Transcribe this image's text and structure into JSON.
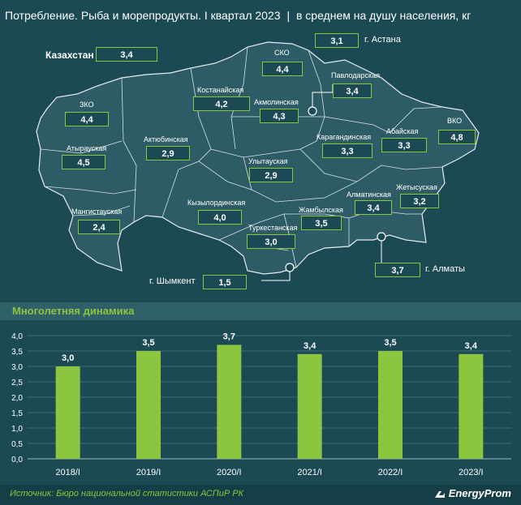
{
  "header": {
    "title": "Потребление. Рыба и морепродукты. I квартал 2023",
    "separator": "|",
    "subtitle": "в среднем на душу населения, кг"
  },
  "map": {
    "kazakhstan_label": "Казахстан",
    "kazakhstan_value": "3,4",
    "regions": [
      {
        "name": "СКО",
        "value": "4,4"
      },
      {
        "name": "Павлодарская",
        "value": "3,4"
      },
      {
        "name": "Костанайская",
        "value": "4,2"
      },
      {
        "name": "Акмолинская",
        "value": "4,3"
      },
      {
        "name": "ЗКО",
        "value": "4,4"
      },
      {
        "name": "Атырауская",
        "value": "4,5"
      },
      {
        "name": "Актюбинская",
        "value": "2,9"
      },
      {
        "name": "Улытауская",
        "value": "2,9"
      },
      {
        "name": "Карагандинская",
        "value": "3,3"
      },
      {
        "name": "Абайская",
        "value": "3,3"
      },
      {
        "name": "ВКО",
        "value": "4,8"
      },
      {
        "name": "Мангистауская",
        "value": "2,4"
      },
      {
        "name": "Кызылординская",
        "value": "4,0"
      },
      {
        "name": "Жамбылская",
        "value": "3,5"
      },
      {
        "name": "Алматинская",
        "value": "3,4"
      },
      {
        "name": "Жетысуская",
        "value": "3,2"
      },
      {
        "name": "Туркестанская",
        "value": "3,0"
      }
    ],
    "cities": [
      {
        "name": "г. Астана",
        "value": "3,1"
      },
      {
        "name": "г. Алматы",
        "value": "3,7"
      },
      {
        "name": "г. Шымкент",
        "value": "1,5"
      }
    ]
  },
  "section_title": "Многолетняя динамика",
  "chart_data": {
    "type": "bar",
    "title": "Многолетняя динамика",
    "categories": [
      "2018/I",
      "2019/I",
      "2020/I",
      "2021/I",
      "2022/I",
      "2023/I"
    ],
    "values": [
      3.0,
      3.5,
      3.7,
      3.4,
      3.5,
      3.4
    ],
    "value_labels": [
      "3,0",
      "3,5",
      "3,7",
      "3,4",
      "3,5",
      "3,4"
    ],
    "ylim": [
      0,
      4.0
    ],
    "yticks": [
      "0,0",
      "0,5",
      "1,0",
      "1,5",
      "2,0",
      "2,5",
      "3,0",
      "3,5",
      "4,0"
    ],
    "grid": true,
    "xlabel": "",
    "ylabel": ""
  },
  "footer": {
    "source": "Источник: Бюро национальной статистики АСПиР РК",
    "brand": "EnergyProm"
  },
  "colors": {
    "background": "#1b4a55",
    "map_fill": "#2d5c66",
    "accent": "#8cc63f",
    "text": "#ffffff"
  }
}
